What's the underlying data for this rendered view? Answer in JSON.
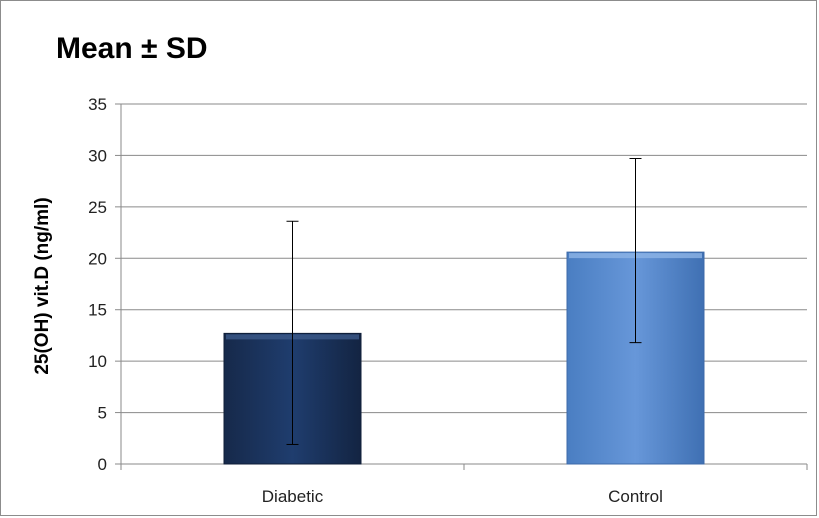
{
  "chart_data": {
    "type": "bar",
    "title": "Mean ± SD",
    "ylabel": "25(OH) vit.D (ng/ml)",
    "xlabel": "",
    "categories": [
      "Diabetic",
      "Control"
    ],
    "values": [
      12.7,
      20.6
    ],
    "error_low": [
      1.9,
      11.8
    ],
    "error_high": [
      23.6,
      29.7
    ],
    "ylim": [
      0,
      35
    ],
    "yticks": [
      0,
      5,
      10,
      15,
      20,
      25,
      30,
      35
    ],
    "grid": true,
    "legend": "none",
    "colors": [
      "#1f3a68",
      "#5b8fd4"
    ]
  }
}
